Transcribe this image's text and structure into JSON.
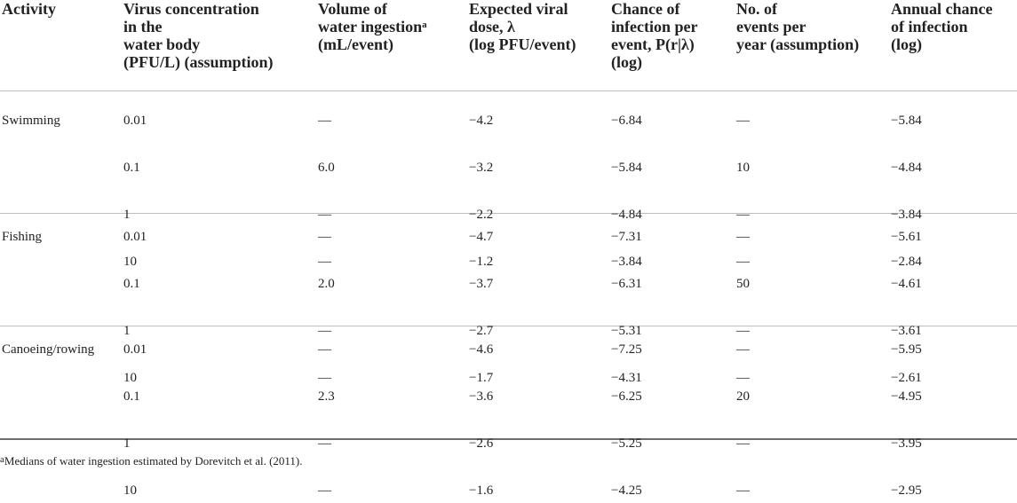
{
  "table": {
    "headers": [
      {
        "lines": [
          "Activity"
        ]
      },
      {
        "lines": [
          "Virus concentration",
          "in the",
          "water body",
          "(PFU/L) (assumption)"
        ]
      },
      {
        "lines": [
          "Volume of",
          "(mL/event)"
        ],
        "first_line_base": "water ingestion",
        "first_line_sup": "a"
      },
      {
        "lines": [
          "Expected viral",
          "dose, λ",
          "(log PFU/event)"
        ]
      },
      {
        "lines": [
          "Chance of",
          "infection per",
          "event, P(r|λ)",
          "(log)"
        ]
      },
      {
        "lines": [
          "No. of",
          "events per",
          "year (assumption)"
        ]
      },
      {
        "lines": [
          "Annual chance",
          "of infection",
          "(log)"
        ]
      }
    ],
    "groups": [
      {
        "activity": "Swimming",
        "rows": [
          {
            "conc": "0.01",
            "volume": "—",
            "dose": "−4.2",
            "chance": "−6.84",
            "events": "—",
            "annual": "−5.84"
          },
          {
            "conc": "0.1",
            "volume": "6.0",
            "dose": "−3.2",
            "chance": "−5.84",
            "events": "10",
            "annual": "−4.84"
          },
          {
            "conc": "1",
            "volume": "—",
            "dose": "−2.2",
            "chance": "−4.84",
            "events": "—",
            "annual": "−3.84"
          },
          {
            "conc": "10",
            "volume": "—",
            "dose": "−1.2",
            "chance": "−3.84",
            "events": "—",
            "annual": "−2.84"
          }
        ]
      },
      {
        "activity": "Fishing",
        "rows": [
          {
            "conc": "0.01",
            "volume": "—",
            "dose": "−4.7",
            "chance": "−7.31",
            "events": "—",
            "annual": "−5.61"
          },
          {
            "conc": "0.1",
            "volume": "2.0",
            "dose": "−3.7",
            "chance": "−6.31",
            "events": "50",
            "annual": "−4.61"
          },
          {
            "conc": "1",
            "volume": "—",
            "dose": "−2.7",
            "chance": "−5.31",
            "events": "—",
            "annual": "−3.61"
          },
          {
            "conc": "10",
            "volume": "—",
            "dose": "−1.7",
            "chance": "−4.31",
            "events": "—",
            "annual": "−2.61"
          }
        ]
      },
      {
        "activity": "Canoeing/rowing",
        "rows": [
          {
            "conc": "0.01",
            "volume": "—",
            "dose": "−4.6",
            "chance": "−7.25",
            "events": "—",
            "annual": "−5.95"
          },
          {
            "conc": "0.1",
            "volume": "2.3",
            "dose": "−3.6",
            "chance": "−6.25",
            "events": "20",
            "annual": "−4.95"
          },
          {
            "conc": "1",
            "volume": "—",
            "dose": "−2.6",
            "chance": "−5.25",
            "events": "—",
            "annual": "−3.95"
          },
          {
            "conc": "10",
            "volume": "—",
            "dose": "−1.6",
            "chance": "−4.25",
            "events": "—",
            "annual": "−2.95"
          }
        ]
      }
    ]
  },
  "footnote": {
    "marker": "a",
    "text": "Medians of water ingestion estimated by Dorevitch et al. (2011)."
  }
}
